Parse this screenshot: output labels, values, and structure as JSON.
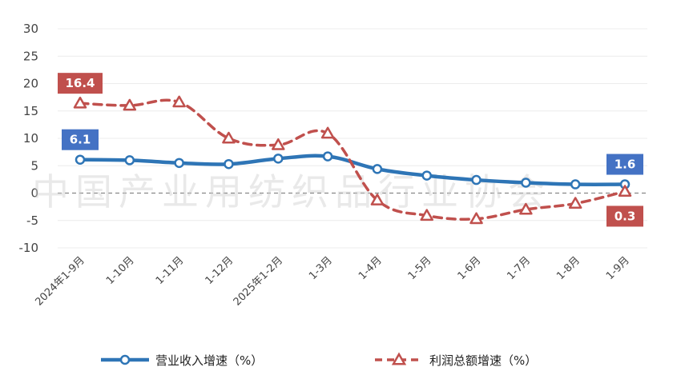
{
  "watermark": "中国产业用纺织品行业协会",
  "chart_data": {
    "type": "line",
    "categories": [
      "2024年1-9月",
      "1-10月",
      "1-11月",
      "1-12月",
      "2025年1-2月",
      "1-3月",
      "1-4月",
      "1-5月",
      "1-6月",
      "1-7月",
      "1-8月",
      "1-9月"
    ],
    "series": [
      {
        "name": "营业收入增速（%）",
        "values": [
          6.1,
          6.0,
          5.5,
          5.3,
          6.3,
          6.7,
          4.4,
          3.2,
          2.4,
          1.9,
          1.6,
          1.6
        ],
        "color": "#2e75b6",
        "style": "solid",
        "marker": "circle"
      },
      {
        "name": "利润总额增速（%）",
        "values": [
          16.4,
          16.0,
          16.6,
          10.0,
          8.8,
          10.9,
          -1.3,
          -4.1,
          -4.7,
          -3.0,
          -1.9,
          0.3
        ],
        "color": "#c0504d",
        "style": "dashed",
        "marker": "triangle"
      }
    ],
    "ylim": [
      -10,
      30
    ],
    "yticks": [
      -10,
      -5,
      0,
      5,
      10,
      15,
      20,
      25,
      30
    ],
    "grid": true,
    "legend": "bottom",
    "callouts": [
      {
        "series": 1,
        "index": 0,
        "text": "16.4",
        "color": "#c0504d",
        "position": "above"
      },
      {
        "series": 0,
        "index": 0,
        "text": "6.1",
        "color": "#4472c4",
        "position": "above"
      },
      {
        "series": 0,
        "index": 11,
        "text": "1.6",
        "color": "#4472c4",
        "position": "above"
      },
      {
        "series": 1,
        "index": 11,
        "text": "0.3",
        "color": "#c0504d",
        "position": "below"
      }
    ]
  }
}
